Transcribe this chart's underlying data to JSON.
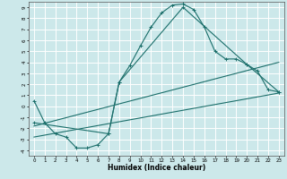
{
  "title": "",
  "xlabel": "Humidex (Indice chaleur)",
  "bg_color": "#cce8ea",
  "grid_color": "#ffffff",
  "line_color": "#1a6e6a",
  "xlim": [
    -0.5,
    23.5
  ],
  "ylim": [
    -4.5,
    9.5
  ],
  "xticks": [
    0,
    1,
    2,
    3,
    4,
    5,
    6,
    7,
    8,
    9,
    10,
    11,
    12,
    13,
    14,
    15,
    16,
    17,
    18,
    19,
    20,
    21,
    22,
    23
  ],
  "yticks": [
    -4,
    -3,
    -2,
    -1,
    0,
    1,
    2,
    3,
    4,
    5,
    6,
    7,
    8,
    9
  ],
  "curve1_x": [
    0,
    1,
    2,
    3,
    4,
    5,
    6,
    7,
    8,
    9,
    10,
    11,
    12,
    13,
    14,
    15,
    16,
    17,
    18,
    19,
    20,
    21,
    22,
    23
  ],
  "curve1_y": [
    0.5,
    -1.5,
    -2.5,
    -2.8,
    -3.8,
    -3.8,
    -3.5,
    -2.5,
    2.2,
    3.7,
    5.5,
    7.2,
    8.5,
    9.2,
    9.3,
    8.8,
    7.2,
    5.0,
    4.3,
    4.3,
    3.8,
    3.2,
    1.5,
    1.3
  ],
  "curve2_x": [
    0,
    7,
    8,
    14,
    20,
    23
  ],
  "curve2_y": [
    -1.5,
    -2.5,
    2.2,
    9.0,
    3.8,
    1.3
  ],
  "line1_x": [
    0,
    23
  ],
  "line1_y": [
    -1.8,
    4.0
  ],
  "line2_x": [
    0,
    23
  ],
  "line2_y": [
    -2.8,
    1.2
  ],
  "marker_size": 2.5,
  "xlabel_fontsize": 5.5,
  "tick_fontsize": 4.0
}
